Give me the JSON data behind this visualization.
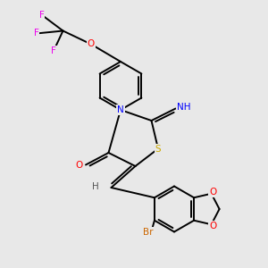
{
  "bg_color": "#e8e8e8",
  "atom_colors": {
    "F": "#ee00ee",
    "O": "#ff0000",
    "N": "#0000ff",
    "S": "#ccaa00",
    "Br": "#cc6600",
    "H": "#555555",
    "C": "#000000"
  },
  "bond_color": "#000000",
  "bond_width": 1.4
}
